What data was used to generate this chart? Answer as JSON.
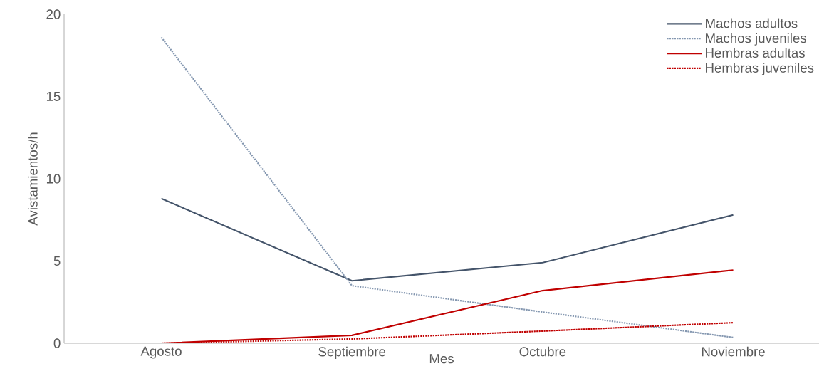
{
  "chart_data": {
    "type": "line",
    "xlabel": "Mes",
    "ylabel": "Avistamientos/h",
    "categories": [
      "Agosto",
      "Septiembre",
      "Octubre",
      "Noviembre"
    ],
    "ylim": [
      0,
      20
    ],
    "yticks": [
      0,
      5,
      10,
      15,
      20
    ],
    "grid": false,
    "legend": "top right",
    "series": [
      {
        "name": "Machos adultos",
        "color": "#44546a",
        "line_style": "solid",
        "values": [
          8.8,
          3.8,
          4.9,
          7.8
        ]
      },
      {
        "name": "Machos juveniles",
        "color": "#8497b0",
        "line_style": "dotted",
        "values": [
          18.6,
          3.5,
          1.9,
          0.35
        ]
      },
      {
        "name": "Hembras adultas",
        "color": "#c00000",
        "line_style": "solid",
        "values": [
          0,
          0.48,
          3.2,
          4.45
        ]
      },
      {
        "name": "Hembras juveniles",
        "color": "#c00000",
        "line_style": "dotted",
        "values": [
          0,
          0.26,
          0.74,
          1.25
        ]
      }
    ]
  }
}
